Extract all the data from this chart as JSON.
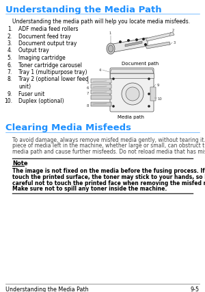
{
  "title1": "Understanding the Media Path",
  "title1_color": "#1E90FF",
  "intro_text": "Understanding the media path will help you locate media misfeeds.",
  "numbered_items": [
    "ADF media feed rollers",
    "Document feed tray",
    "Document output tray",
    "Output tray",
    "Imaging cartridge",
    "Toner cartridge carousel",
    "Tray 1 (multipurpose tray)",
    "Tray 2 (optional lower feed",
    "unit)",
    "Fuser unit",
    "Duplex (optional)"
  ],
  "numbered_display": [
    [
      "1.",
      "ADF media feed rollers"
    ],
    [
      "2.",
      "Document feed tray"
    ],
    [
      "3.",
      "Document output tray"
    ],
    [
      "4.",
      "Output tray"
    ],
    [
      "5.",
      "Imaging cartridge"
    ],
    [
      "6.",
      "Toner cartridge carousel"
    ],
    [
      "7.",
      "Tray 1 (multipurpose tray)"
    ],
    [
      "8.",
      "Tray 2 (optional lower feed"
    ],
    [
      "",
      "unit)"
    ],
    [
      "9.",
      "Fuser unit"
    ],
    [
      "10.",
      "Duplex (optional)"
    ]
  ],
  "doc_path_label": "Document path",
  "media_path_label": "Media path",
  "title2": "Clearing Media Misfeeds",
  "title2_color": "#1E90FF",
  "para2_lines": [
    "To avoid damage, always remove misfed media gently, without tearing it. Any",
    "piece of media left in the machine, whether large or small, can obstruct the",
    "media path and cause further misfeeds. Do not reload media that has misfed."
  ],
  "note_label": "Note",
  "note_lines": [
    "The image is not fixed on the media before the fusing process. If you",
    "touch the printed surface, the toner may stick to your hands, so be",
    "careful not to touch the printed face when removing the misfed media.",
    "Make sure not to spill any toner inside the machine."
  ],
  "footer_left": "Understanding the Media Path",
  "footer_right": "9-5",
  "bg_color": "#FFFFFF",
  "text_color": "#000000",
  "list_indent_num": 18,
  "list_indent_text": 27
}
